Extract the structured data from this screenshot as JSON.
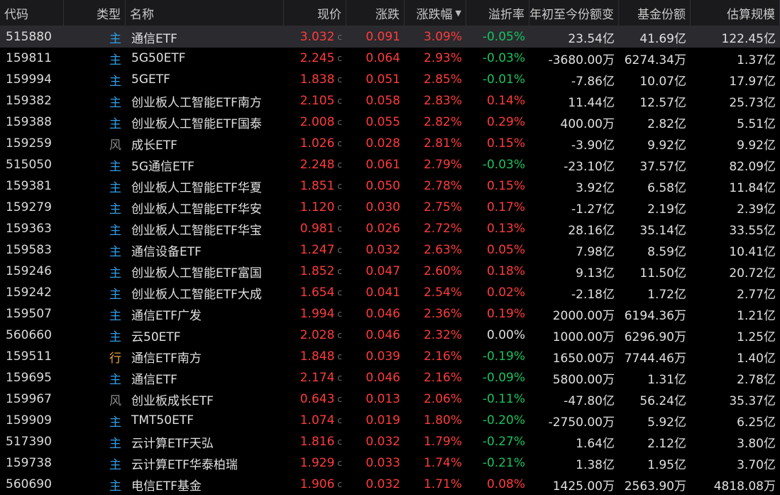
{
  "columns": {
    "code": "代码",
    "type": "类型",
    "name": "名称",
    "price": "现价",
    "change": "涨跌",
    "change_pct": "涨跌幅",
    "premium": "溢折率",
    "ytd_shares_change": "年初至今份额变",
    "fund_shares": "基金份额",
    "est_size": "估算规模"
  },
  "sort_indicator": "▼",
  "price_suffix": "c",
  "colors": {
    "up": "#ff3b3b",
    "down": "#19c25f",
    "flat": "#e0e0e0",
    "type_zhu": "#2e9fe8",
    "type_feng": "#8a8a8a",
    "type_hang": "#e8a23a"
  },
  "rows": [
    {
      "code": "515880",
      "type": "主",
      "name": "通信ETF",
      "price": "3.032",
      "change": "0.091",
      "change_pct": "3.09%",
      "premium": "-0.05%",
      "ytd_shares_change": "23.54亿",
      "fund_shares": "41.69亿",
      "est_size": "122.45亿"
    },
    {
      "code": "159811",
      "type": "主",
      "name": "5G50ETF",
      "price": "2.245",
      "change": "0.064",
      "change_pct": "2.93%",
      "premium": "-0.03%",
      "ytd_shares_change": "-3680.00万",
      "fund_shares": "6274.34万",
      "est_size": "1.37亿"
    },
    {
      "code": "159994",
      "type": "主",
      "name": "5GETF",
      "price": "1.838",
      "change": "0.051",
      "change_pct": "2.85%",
      "premium": "-0.01%",
      "ytd_shares_change": "-7.86亿",
      "fund_shares": "10.07亿",
      "est_size": "17.97亿"
    },
    {
      "code": "159382",
      "type": "主",
      "name": "创业板人工智能ETF南方",
      "price": "2.105",
      "change": "0.058",
      "change_pct": "2.83%",
      "premium": "0.14%",
      "ytd_shares_change": "11.44亿",
      "fund_shares": "12.57亿",
      "est_size": "25.73亿"
    },
    {
      "code": "159388",
      "type": "主",
      "name": "创业板人工智能ETF国泰",
      "price": "2.008",
      "change": "0.055",
      "change_pct": "2.82%",
      "premium": "0.29%",
      "ytd_shares_change": "400.00万",
      "fund_shares": "2.82亿",
      "est_size": "5.51亿"
    },
    {
      "code": "159259",
      "type": "风",
      "name": "成长ETF",
      "price": "1.026",
      "change": "0.028",
      "change_pct": "2.81%",
      "premium": "0.15%",
      "ytd_shares_change": "-3.90亿",
      "fund_shares": "9.92亿",
      "est_size": "9.92亿"
    },
    {
      "code": "515050",
      "type": "主",
      "name": "5G通信ETF",
      "price": "2.248",
      "change": "0.061",
      "change_pct": "2.79%",
      "premium": "-0.03%",
      "ytd_shares_change": "-23.10亿",
      "fund_shares": "37.57亿",
      "est_size": "82.09亿"
    },
    {
      "code": "159381",
      "type": "主",
      "name": "创业板人工智能ETF华夏",
      "price": "1.851",
      "change": "0.050",
      "change_pct": "2.78%",
      "premium": "0.15%",
      "ytd_shares_change": "3.92亿",
      "fund_shares": "6.58亿",
      "est_size": "11.84亿"
    },
    {
      "code": "159279",
      "type": "主",
      "name": "创业板人工智能ETF华安",
      "price": "1.120",
      "change": "0.030",
      "change_pct": "2.75%",
      "premium": "0.17%",
      "ytd_shares_change": "-1.27亿",
      "fund_shares": "2.19亿",
      "est_size": "2.39亿"
    },
    {
      "code": "159363",
      "type": "主",
      "name": "创业板人工智能ETF华宝",
      "price": "0.981",
      "change": "0.026",
      "change_pct": "2.72%",
      "premium": "0.13%",
      "ytd_shares_change": "28.16亿",
      "fund_shares": "35.14亿",
      "est_size": "33.55亿"
    },
    {
      "code": "159583",
      "type": "主",
      "name": "通信设备ETF",
      "price": "1.247",
      "change": "0.032",
      "change_pct": "2.63%",
      "premium": "0.05%",
      "ytd_shares_change": "7.98亿",
      "fund_shares": "8.59亿",
      "est_size": "10.41亿"
    },
    {
      "code": "159246",
      "type": "主",
      "name": "创业板人工智能ETF富国",
      "price": "1.852",
      "change": "0.047",
      "change_pct": "2.60%",
      "premium": "0.18%",
      "ytd_shares_change": "9.13亿",
      "fund_shares": "11.50亿",
      "est_size": "20.72亿"
    },
    {
      "code": "159242",
      "type": "主",
      "name": "创业板人工智能ETF大成",
      "price": "1.654",
      "change": "0.041",
      "change_pct": "2.54%",
      "premium": "0.02%",
      "ytd_shares_change": "-2.18亿",
      "fund_shares": "1.72亿",
      "est_size": "2.77亿"
    },
    {
      "code": "159507",
      "type": "主",
      "name": "通信ETF广发",
      "price": "1.994",
      "change": "0.046",
      "change_pct": "2.36%",
      "premium": "0.19%",
      "ytd_shares_change": "2000.00万",
      "fund_shares": "6194.36万",
      "est_size": "1.21亿"
    },
    {
      "code": "560660",
      "type": "主",
      "name": "云50ETF",
      "price": "2.028",
      "change": "0.046",
      "change_pct": "2.32%",
      "premium": "0.00%",
      "ytd_shares_change": "1000.00万",
      "fund_shares": "6296.90万",
      "est_size": "1.25亿"
    },
    {
      "code": "159511",
      "type": "行",
      "name": "通信ETF南方",
      "price": "1.848",
      "change": "0.039",
      "change_pct": "2.16%",
      "premium": "-0.19%",
      "ytd_shares_change": "1650.00万",
      "fund_shares": "7744.46万",
      "est_size": "1.40亿"
    },
    {
      "code": "159695",
      "type": "主",
      "name": "通信ETF",
      "price": "2.174",
      "change": "0.046",
      "change_pct": "2.16%",
      "premium": "-0.09%",
      "ytd_shares_change": "5800.00万",
      "fund_shares": "1.31亿",
      "est_size": "2.78亿"
    },
    {
      "code": "159967",
      "type": "风",
      "name": "创业板成长ETF",
      "price": "0.643",
      "change": "0.013",
      "change_pct": "2.06%",
      "premium": "-0.11%",
      "ytd_shares_change": "-47.80亿",
      "fund_shares": "56.24亿",
      "est_size": "35.37亿"
    },
    {
      "code": "159909",
      "type": "主",
      "name": "TMT50ETF",
      "price": "1.074",
      "change": "0.019",
      "change_pct": "1.80%",
      "premium": "-0.20%",
      "ytd_shares_change": "-2750.00万",
      "fund_shares": "5.92亿",
      "est_size": "6.25亿"
    },
    {
      "code": "517390",
      "type": "主",
      "name": "云计算ETF天弘",
      "price": "1.816",
      "change": "0.032",
      "change_pct": "1.79%",
      "premium": "-0.27%",
      "ytd_shares_change": "1.64亿",
      "fund_shares": "2.12亿",
      "est_size": "3.80亿"
    },
    {
      "code": "159738",
      "type": "主",
      "name": "云计算ETF华泰柏瑞",
      "price": "1.929",
      "change": "0.033",
      "change_pct": "1.74%",
      "premium": "-0.21%",
      "ytd_shares_change": "1.38亿",
      "fund_shares": "1.95亿",
      "est_size": "3.70亿"
    },
    {
      "code": "560690",
      "type": "主",
      "name": "电信ETF基金",
      "price": "1.906",
      "change": "0.032",
      "change_pct": "1.71%",
      "premium": "0.08%",
      "ytd_shares_change": "1425.00万",
      "fund_shares": "2563.90万",
      "est_size": "4818.08万"
    }
  ]
}
